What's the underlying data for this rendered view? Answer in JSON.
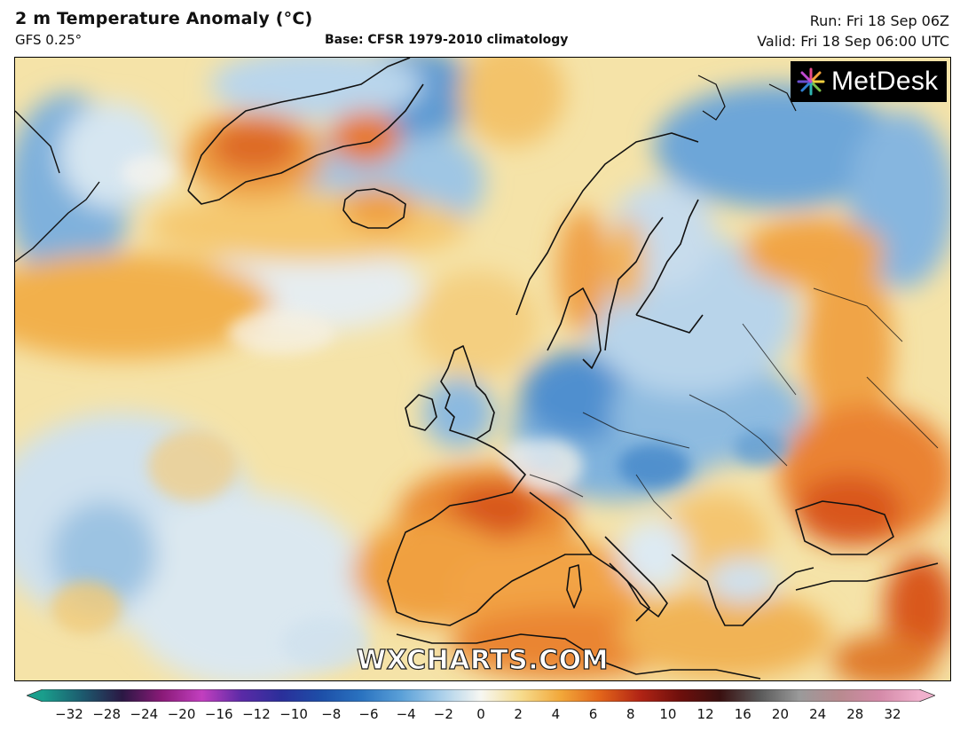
{
  "header": {
    "title": "2 m Temperature Anomaly (°C)",
    "model": "GFS 0.25°",
    "base": "Base: CFSR 1979-2010 climatology",
    "run": "Run: Fri 18 Sep 06Z",
    "valid": "Valid: Fri 18 Sep 06:00 UTC"
  },
  "logo": {
    "text": "MetDesk",
    "icon": "metdesk-starburst-icon"
  },
  "watermark": "WXCHARTS.COM",
  "colorbar": {
    "units": "°C",
    "ticks": [
      "−32",
      "−28",
      "−24",
      "−20",
      "−16",
      "−12",
      "−10",
      "−8",
      "−6",
      "−4",
      "−2",
      "0",
      "2",
      "4",
      "6",
      "8",
      "10",
      "12",
      "16",
      "20",
      "24",
      "28",
      "32"
    ],
    "stops": [
      {
        "v": -32,
        "c": "#1a9e8c"
      },
      {
        "v": -28,
        "c": "#1c5a6e"
      },
      {
        "v": -24,
        "c": "#2b1844"
      },
      {
        "v": -20,
        "c": "#8a1a78"
      },
      {
        "v": -16,
        "c": "#c23fbf"
      },
      {
        "v": -12,
        "c": "#5a2aa6"
      },
      {
        "v": -10,
        "c": "#2a2f9a"
      },
      {
        "v": -8,
        "c": "#1d4fa8"
      },
      {
        "v": -6,
        "c": "#2a73c0"
      },
      {
        "v": -4,
        "c": "#5aa0d8"
      },
      {
        "v": -2,
        "c": "#a9cfea"
      },
      {
        "v": 0,
        "c": "#f7f7f2"
      },
      {
        "v": 2,
        "c": "#f6dc8e"
      },
      {
        "v": 4,
        "c": "#f2a83a"
      },
      {
        "v": 6,
        "c": "#e2641a"
      },
      {
        "v": 8,
        "c": "#b12415"
      },
      {
        "v": 10,
        "c": "#6e0f0c"
      },
      {
        "v": 12,
        "c": "#3a1010"
      },
      {
        "v": 16,
        "c": "#5a5a5a"
      },
      {
        "v": 20,
        "c": "#9a9a9a"
      },
      {
        "v": 24,
        "c": "#b88a8f"
      },
      {
        "v": 28,
        "c": "#d48aa8"
      },
      {
        "v": 32,
        "c": "#f0b0cc"
      }
    ]
  },
  "map": {
    "region": "North Atlantic and Europe",
    "warm_anomalies": [
      "Greenland",
      "Iceland",
      "Iberia",
      "France",
      "Mediterranean",
      "Eastern Europe",
      "North Africa",
      "Scandinavia"
    ],
    "cool_anomalies": [
      "Central Europe",
      "British Isles",
      "Baltic",
      "Northwest Russia",
      "Western Atlantic"
    ]
  }
}
